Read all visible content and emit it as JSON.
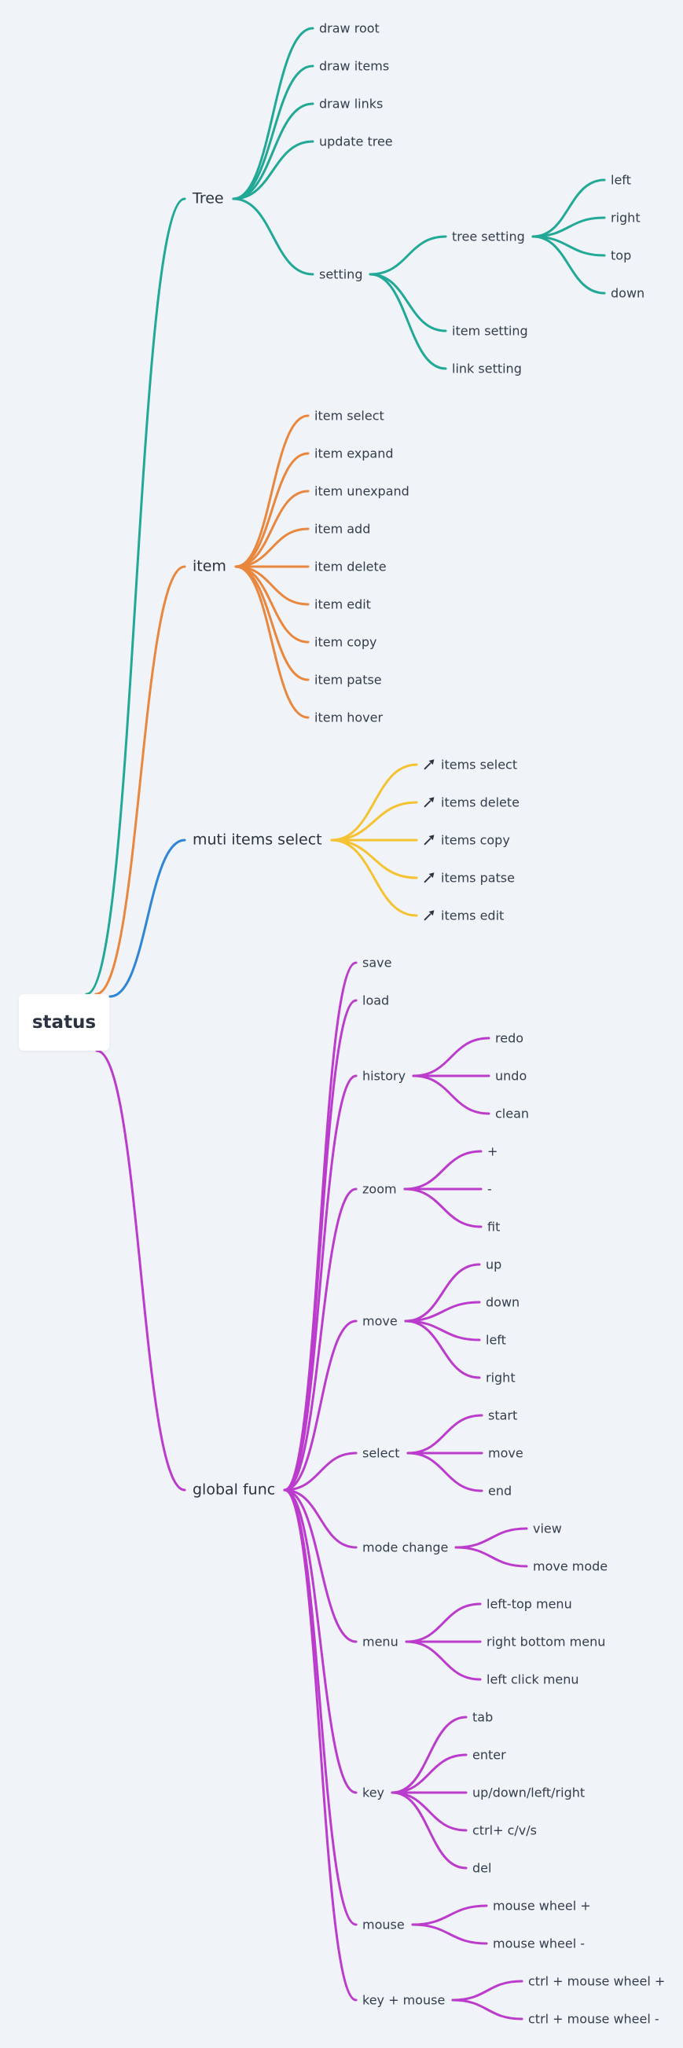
{
  "root": {
    "label": "status"
  },
  "branches": [
    {
      "label": "Tree",
      "color": "#21a896",
      "children": [
        {
          "label": "draw root"
        },
        {
          "label": "draw items"
        },
        {
          "label": "draw links"
        },
        {
          "label": "update tree"
        },
        {
          "label": "setting",
          "children": [
            {
              "label": "tree setting",
              "children": [
                {
                  "label": "left"
                },
                {
                  "label": "right"
                },
                {
                  "label": "top"
                },
                {
                  "label": "down"
                }
              ]
            },
            {
              "label": "item setting"
            },
            {
              "label": "link setting"
            }
          ]
        }
      ]
    },
    {
      "label": "item",
      "color": "#e8873d",
      "children": [
        {
          "label": "item select"
        },
        {
          "label": "item expand"
        },
        {
          "label": "item unexpand"
        },
        {
          "label": "item add"
        },
        {
          "label": "item delete"
        },
        {
          "label": "item edit"
        },
        {
          "label": "item copy"
        },
        {
          "label": "item patse"
        },
        {
          "label": "item hover"
        }
      ]
    },
    {
      "label": "muti items select",
      "color": "#2f86d6",
      "child_color": "#f5c232",
      "children": [
        {
          "label": "items select",
          "icon": "pin-icon"
        },
        {
          "label": "items delete",
          "icon": "pin-icon"
        },
        {
          "label": "items copy",
          "icon": "pin-icon"
        },
        {
          "label": "items patse",
          "icon": "pin-icon"
        },
        {
          "label": "items edit",
          "icon": "pin-icon"
        }
      ]
    },
    {
      "label": "global func",
      "color": "#bb3ccc",
      "children": [
        {
          "label": "save"
        },
        {
          "label": "load"
        },
        {
          "label": "history",
          "children": [
            {
              "label": "redo"
            },
            {
              "label": "undo"
            },
            {
              "label": "clean"
            }
          ]
        },
        {
          "label": "zoom",
          "children": [
            {
              "label": "+"
            },
            {
              "label": "-"
            },
            {
              "label": "fit"
            }
          ]
        },
        {
          "label": "move",
          "children": [
            {
              "label": "up"
            },
            {
              "label": "down"
            },
            {
              "label": "left"
            },
            {
              "label": "right"
            }
          ]
        },
        {
          "label": "select",
          "children": [
            {
              "label": "start"
            },
            {
              "label": "move"
            },
            {
              "label": "end"
            }
          ]
        },
        {
          "label": "mode change",
          "children": [
            {
              "label": "view"
            },
            {
              "label": "move mode"
            }
          ]
        },
        {
          "label": "menu",
          "children": [
            {
              "label": "left-top menu"
            },
            {
              "label": "right bottom menu"
            },
            {
              "label": "left click menu"
            }
          ]
        },
        {
          "label": "key",
          "children": [
            {
              "label": "tab"
            },
            {
              "label": "enter"
            },
            {
              "label": "up/down/left/right"
            },
            {
              "label": "ctrl+ c/v/s"
            },
            {
              "label": "del"
            }
          ]
        },
        {
          "label": "mouse",
          "children": [
            {
              "label": "mouse wheel +"
            },
            {
              "label": "mouse wheel -"
            }
          ]
        },
        {
          "label": "key + mouse",
          "children": [
            {
              "label": "ctrl + mouse wheel +"
            },
            {
              "label": "ctrl + mouse wheel -"
            }
          ]
        }
      ]
    }
  ]
}
